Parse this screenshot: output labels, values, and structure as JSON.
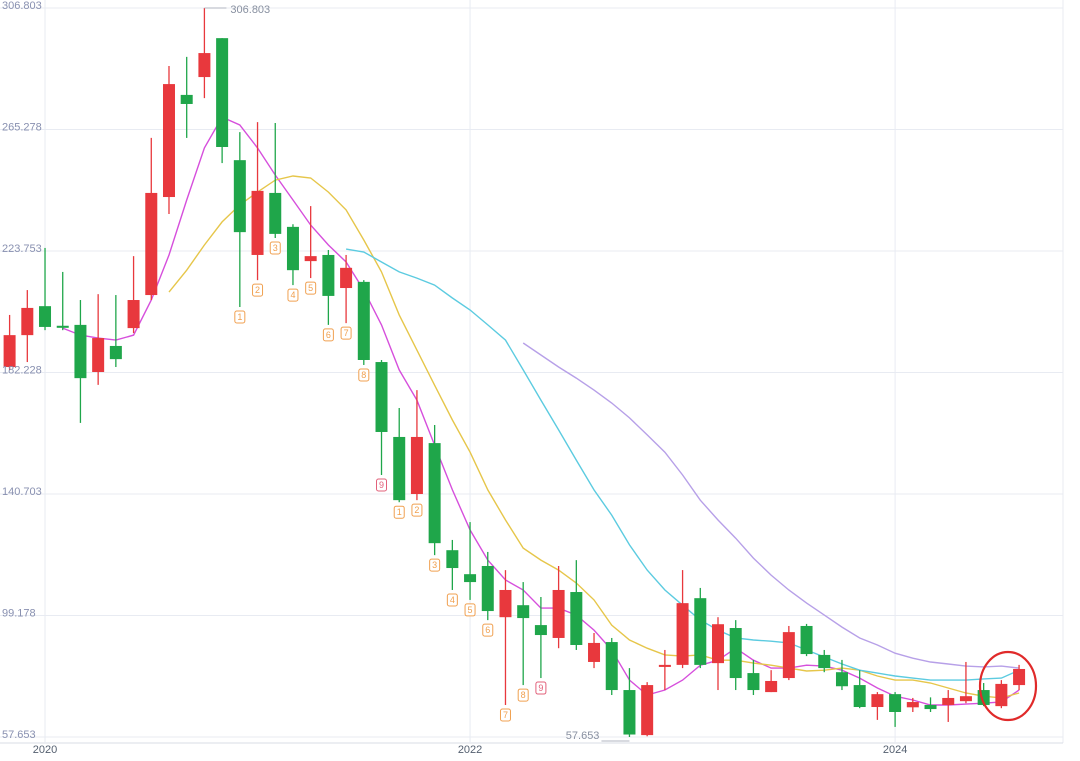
{
  "chart_data": {
    "type": "candlestick",
    "categories": [
      null,
      null,
      "2020",
      null,
      null,
      null,
      null,
      null,
      null,
      null,
      null,
      null,
      null,
      null,
      null,
      null,
      null,
      null,
      null,
      null,
      null,
      null,
      null,
      null,
      null,
      null,
      "2022",
      null,
      null,
      null,
      null,
      null,
      null,
      null,
      null,
      null,
      null,
      null,
      null,
      null,
      null,
      null,
      null,
      null,
      null,
      null,
      null,
      null,
      null,
      null,
      "2024",
      null,
      null,
      null,
      null,
      null,
      null,
      null
    ],
    "open": [
      184.1,
      195.0,
      204.9,
      198.2,
      198.5,
      182.4,
      191.3,
      197.4,
      208.7,
      242.2,
      277.1,
      283.2,
      296.5,
      254.8,
      222.4,
      243.6,
      232.0,
      220.3,
      222.4,
      211.1,
      213.2,
      185.8,
      160.2,
      140.7,
      158.1,
      121.5,
      113.3,
      116.1,
      98.6,
      102.7,
      95.9,
      91.5,
      107.2,
      83.3,
      90.1,
      73.7,
      58.3,
      81.6,
      82.3,
      105.1,
      82.9,
      94.9,
      79.5,
      73.0,
      77.8,
      95.6,
      85.7,
      79.8,
      75.4,
      67.9,
      72.3,
      67.8,
      68.6,
      68.6,
      69.9,
      73.7,
      68.2,
      75.4
    ],
    "high": [
      201.9,
      210.4,
      224.8,
      216.6,
      207.0,
      209.0,
      208.7,
      222.0,
      262.4,
      287.0,
      290.1,
      306.803,
      296.5,
      264.4,
      267.8,
      267.5,
      232.9,
      239.1,
      224.1,
      222.4,
      213.8,
      186.5,
      170.1,
      176.2,
      164.3,
      125.0,
      131.1,
      120.9,
      114.7,
      110.6,
      105.5,
      116.1,
      118.1,
      93.2,
      91.5,
      81.2,
      76.4,
      87.4,
      114.7,
      108.6,
      98.6,
      97.6,
      84.0,
      80.5,
      95.6,
      96.3,
      87.4,
      84.0,
      80.5,
      73.0,
      73.0,
      71.0,
      71.2,
      73.7,
      83.3,
      76.1,
      77.1,
      82.3
    ],
    "low": [
      183.1,
      185.8,
      196.7,
      196.7,
      165.0,
      178.0,
      184.1,
      195.7,
      207.0,
      236.4,
      262.4,
      276.0,
      253.8,
      204.6,
      213.8,
      228.2,
      212.1,
      214.5,
      198.5,
      199.1,
      184.8,
      147.2,
      137.9,
      138.6,
      119.8,
      107.9,
      104.5,
      97.6,
      68.6,
      75.4,
      77.8,
      88.0,
      87.4,
      81.2,
      72.0,
      57.653,
      57.9,
      73.7,
      81.2,
      81.2,
      73.7,
      73.7,
      72.0,
      73.0,
      77.1,
      85.3,
      79.8,
      73.7,
      67.5,
      63.5,
      61.1,
      66.2,
      66.2,
      62.8,
      69.2,
      68.2,
      67.5,
      73.7
    ],
    "close": [
      195.0,
      204.3,
      197.8,
      197.5,
      180.3,
      194.0,
      186.8,
      207.0,
      243.6,
      280.8,
      274.0,
      291.4,
      259.3,
      230.2,
      244.3,
      229.6,
      217.2,
      222.0,
      208.4,
      218.0,
      186.5,
      161.9,
      138.6,
      160.2,
      123.9,
      115.4,
      110.6,
      100.7,
      107.9,
      98.3,
      92.5,
      107.9,
      89.1,
      89.8,
      73.7,
      58.5,
      75.4,
      82.3,
      103.4,
      82.3,
      96.2,
      77.8,
      73.7,
      76.8,
      93.5,
      86.0,
      81.2,
      75.0,
      67.9,
      72.3,
      66.2,
      69.6,
      67.2,
      71.0,
      71.6,
      68.6,
      75.8,
      80.9
    ],
    "up_color": "#e8383d",
    "down_color": "#1fa64a",
    "series": [
      {
        "color": "#d64fdc",
        "values": [
          null,
          null,
          null,
          197.4,
          195.0,
          194.0,
          193.3,
          195.0,
          207.0,
          222.4,
          241.2,
          259.0,
          269.5,
          266.8,
          259.0,
          249.7,
          241.2,
          232.6,
          225.8,
          220.0,
          210.4,
          198.5,
          183.1,
          172.8,
          157.4,
          142.1,
          128.4,
          118.1,
          111.3,
          107.9,
          101.7,
          101.7,
          99.3,
          94.2,
          87.4,
          77.1,
          72.0,
          73.7,
          77.1,
          82.2,
          83.9,
          88.0,
          83.9,
          81.2,
          81.2,
          82.2,
          81.9,
          80.5,
          77.8,
          74.4,
          71.6,
          70.3,
          68.6,
          68.6,
          68.9,
          69.2,
          69.6,
          73.7
        ]
      },
      {
        "color": "#e6c64a",
        "values": [
          null,
          null,
          null,
          null,
          null,
          null,
          null,
          null,
          null,
          209.7,
          217.2,
          225.8,
          233.7,
          239.5,
          243.9,
          248.0,
          249.4,
          248.7,
          243.9,
          237.8,
          227.5,
          216.6,
          201.9,
          189.9,
          177.9,
          166.0,
          155.0,
          142.1,
          131.8,
          122.2,
          118.1,
          114.7,
          110.3,
          104.5,
          95.9,
          90.8,
          88.0,
          85.7,
          85.3,
          85.7,
          83.9,
          83.9,
          82.9,
          82.2,
          81.2,
          80.2,
          80.5,
          81.2,
          80.5,
          78.5,
          77.1,
          77.1,
          76.1,
          74.4,
          72.7,
          71.6,
          71.0,
          72.7
        ]
      },
      {
        "color": "#5ccbe0",
        "values": [
          null,
          null,
          null,
          null,
          null,
          null,
          null,
          null,
          null,
          null,
          null,
          null,
          null,
          null,
          null,
          null,
          null,
          null,
          null,
          224.4,
          223.4,
          220.0,
          216.6,
          214.5,
          212.1,
          207.7,
          203.6,
          198.5,
          193.3,
          183.1,
          172.8,
          162.6,
          152.3,
          142.1,
          133.5,
          123.3,
          114.7,
          107.9,
          102.7,
          97.6,
          94.2,
          91.5,
          90.8,
          90.4,
          89.8,
          87.4,
          85.0,
          82.6,
          80.5,
          79.5,
          78.5,
          77.8,
          77.1,
          77.1,
          77.1,
          77.5,
          77.8,
          80.5
        ]
      },
      {
        "color": "#b7a0e8",
        "values": [
          null,
          null,
          null,
          null,
          null,
          null,
          null,
          null,
          null,
          null,
          null,
          null,
          null,
          null,
          null,
          null,
          null,
          null,
          null,
          null,
          null,
          null,
          null,
          null,
          null,
          null,
          null,
          null,
          null,
          192.3,
          188.2,
          184.1,
          180.3,
          176.2,
          171.8,
          166.7,
          160.9,
          155.0,
          147.2,
          138.6,
          131.8,
          125.6,
          118.8,
          113.0,
          107.9,
          103.4,
          99.3,
          95.2,
          91.5,
          89.1,
          86.3,
          84.6,
          83.3,
          82.6,
          81.9,
          81.6,
          81.9,
          81.2
        ]
      }
    ],
    "td_labels": [
      {
        "index": 13,
        "text": "1",
        "color": "#f0a050"
      },
      {
        "index": 14,
        "text": "2",
        "color": "#f0a050"
      },
      {
        "index": 15,
        "text": "3",
        "color": "#f0a050"
      },
      {
        "index": 16,
        "text": "4",
        "color": "#f0a050"
      },
      {
        "index": 17,
        "text": "5",
        "color": "#f0a050"
      },
      {
        "index": 18,
        "text": "6",
        "color": "#f0a050"
      },
      {
        "index": 19,
        "text": "7",
        "color": "#f0a050"
      },
      {
        "index": 20,
        "text": "8",
        "color": "#f0a050"
      },
      {
        "index": 21,
        "text": "9",
        "color": "#e2607a"
      },
      {
        "index": 22,
        "text": "1",
        "color": "#f0a050"
      },
      {
        "index": 23,
        "text": "2",
        "color": "#f0a050"
      },
      {
        "index": 24,
        "text": "3",
        "color": "#f0a050"
      },
      {
        "index": 25,
        "text": "4",
        "color": "#f0a050"
      },
      {
        "index": 26,
        "text": "5",
        "color": "#f0a050"
      },
      {
        "index": 27,
        "text": "6",
        "color": "#f0a050"
      },
      {
        "index": 28,
        "text": "7",
        "color": "#f0a050"
      },
      {
        "index": 29,
        "text": "8",
        "color": "#f0a050"
      },
      {
        "index": 30,
        "text": "9",
        "color": "#e2607a"
      }
    ],
    "ylim": [
      57.653,
      306.803
    ],
    "yticks": [
      57.653,
      99.178,
      140.703,
      182.228,
      223.753,
      265.278,
      306.803
    ],
    "grid": true
  }
}
